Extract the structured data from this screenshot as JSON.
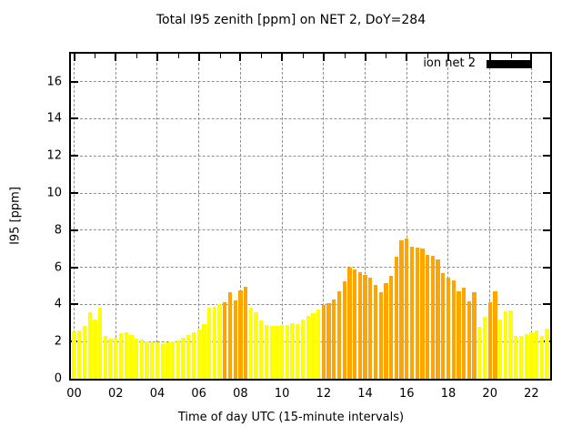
{
  "title": "Total I95 zenith [ppm] on NET 2, DoY=284",
  "legend": {
    "label": "ion net 2",
    "swatch_color": "#000000",
    "position": "top-right inside plot"
  },
  "x_axis": {
    "label": "Time of day UTC (15-minute intervals)",
    "tick_labels": [
      "00",
      "02",
      "04",
      "06",
      "08",
      "10",
      "12",
      "14",
      "16",
      "18",
      "20",
      "22"
    ],
    "tick_hours": [
      0,
      2,
      4,
      6,
      8,
      10,
      12,
      14,
      16,
      18,
      20,
      22
    ],
    "minor_tick_hours": [
      1,
      3,
      5,
      7,
      9,
      11,
      13,
      15,
      17,
      19,
      21
    ],
    "range_hours": [
      -0.155,
      22.9
    ]
  },
  "y_axis": {
    "label": "I95 [ppm]",
    "tick_values": [
      0,
      2,
      4,
      6,
      8,
      10,
      12,
      14,
      16
    ],
    "range": [
      0,
      17.5
    ]
  },
  "chart_data": {
    "type": "bar",
    "series_name": "ion net 2",
    "interval_minutes": 15,
    "grid": "gray dashed at major ticks",
    "legend_position": "top-right inside plot",
    "palette": {
      "yellow": "#ffff00",
      "orange": "#ffa500"
    },
    "x": [
      "00:00",
      "00:15",
      "00:30",
      "00:45",
      "01:00",
      "01:15",
      "01:30",
      "01:45",
      "02:00",
      "02:15",
      "02:30",
      "02:45",
      "03:00",
      "03:15",
      "03:30",
      "03:45",
      "04:00",
      "04:15",
      "04:30",
      "04:45",
      "05:00",
      "05:15",
      "05:30",
      "05:45",
      "06:00",
      "06:15",
      "06:30",
      "06:45",
      "07:00",
      "07:15",
      "07:30",
      "07:45",
      "08:00",
      "08:15",
      "08:30",
      "08:45",
      "09:00",
      "09:15",
      "09:30",
      "09:45",
      "10:00",
      "10:15",
      "10:30",
      "10:45",
      "11:00",
      "11:15",
      "11:30",
      "11:45",
      "12:00",
      "12:15",
      "12:30",
      "12:45",
      "13:00",
      "13:15",
      "13:30",
      "13:45",
      "14:00",
      "14:15",
      "14:30",
      "14:45",
      "15:00",
      "15:15",
      "15:30",
      "15:45",
      "16:00",
      "16:15",
      "16:30",
      "16:45",
      "17:00",
      "17:15",
      "17:30",
      "17:45",
      "18:00",
      "18:15",
      "18:30",
      "18:45",
      "19:00",
      "19:15",
      "19:30",
      "19:45",
      "20:00",
      "20:15",
      "20:30",
      "20:45",
      "21:00",
      "21:15",
      "21:30",
      "21:45",
      "22:00",
      "22:15",
      "22:30",
      "22:45"
    ],
    "values": [
      2.55,
      2.6,
      2.85,
      3.6,
      3.2,
      3.8,
      2.3,
      2.15,
      2.2,
      2.45,
      2.5,
      2.35,
      2.15,
      2.1,
      2.0,
      1.95,
      1.95,
      1.9,
      1.95,
      2.0,
      2.05,
      2.2,
      2.35,
      2.5,
      2.65,
      2.95,
      3.8,
      3.85,
      4.0,
      4.1,
      4.65,
      4.2,
      4.75,
      4.95,
      3.8,
      3.6,
      3.15,
      2.9,
      2.85,
      2.82,
      2.87,
      2.9,
      3.0,
      2.95,
      3.2,
      3.4,
      3.55,
      3.75,
      3.95,
      4.05,
      4.25,
      4.7,
      5.25,
      6.0,
      5.9,
      5.75,
      5.6,
      5.45,
      5.05,
      4.65,
      5.15,
      5.55,
      6.55,
      7.45,
      7.55,
      7.1,
      7.05,
      7.0,
      6.65,
      6.6,
      6.4,
      5.7,
      5.45,
      5.28,
      4.72,
      4.88,
      4.15,
      4.65,
      2.8,
      3.35,
      4.1,
      4.7,
      3.2,
      3.65,
      3.7,
      2.3,
      2.3,
      2.4,
      2.5,
      2.6,
      2.3,
      2.7
    ],
    "colors": [
      "yellow",
      "yellow",
      "yellow",
      "yellow",
      "yellow",
      "yellow",
      "yellow",
      "yellow",
      "yellow",
      "yellow",
      "yellow",
      "yellow",
      "yellow",
      "yellow",
      "yellow",
      "yellow",
      "yellow",
      "yellow",
      "yellow",
      "yellow",
      "yellow",
      "yellow",
      "yellow",
      "yellow",
      "yellow",
      "yellow",
      "yellow",
      "yellow",
      "yellow",
      "orange",
      "orange",
      "orange",
      "orange",
      "orange",
      "yellow",
      "yellow",
      "yellow",
      "yellow",
      "yellow",
      "yellow",
      "yellow",
      "yellow",
      "yellow",
      "yellow",
      "yellow",
      "yellow",
      "yellow",
      "yellow",
      "orange",
      "orange",
      "orange",
      "orange",
      "orange",
      "orange",
      "orange",
      "orange",
      "orange",
      "orange",
      "orange",
      "orange",
      "orange",
      "orange",
      "orange",
      "orange",
      "orange",
      "orange",
      "orange",
      "orange",
      "orange",
      "orange",
      "orange",
      "orange",
      "orange",
      "orange",
      "orange",
      "orange",
      "orange",
      "orange",
      "yellow",
      "yellow",
      "orange",
      "orange",
      "yellow",
      "yellow",
      "yellow",
      "yellow",
      "yellow",
      "yellow",
      "yellow",
      "yellow",
      "yellow",
      "yellow"
    ]
  }
}
